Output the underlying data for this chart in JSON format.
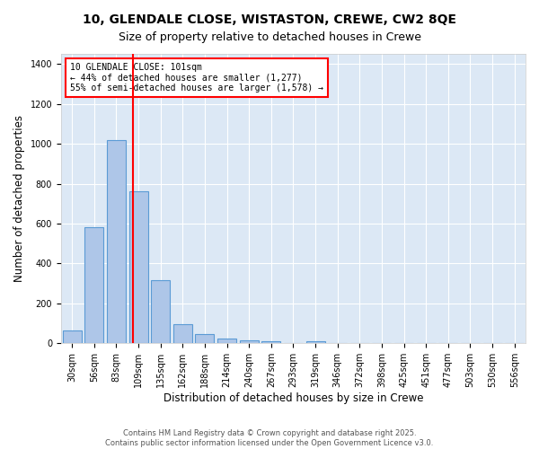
{
  "title_line1": "10, GLENDALE CLOSE, WISTASTON, CREWE, CW2 8QE",
  "title_line2": "Size of property relative to detached houses in Crewe",
  "xlabel": "Distribution of detached houses by size in Crewe",
  "ylabel": "Number of detached properties",
  "categories": [
    "30sqm",
    "56sqm",
    "83sqm",
    "109sqm",
    "135sqm",
    "162sqm",
    "188sqm",
    "214sqm",
    "240sqm",
    "267sqm",
    "293sqm",
    "319sqm",
    "346sqm",
    "372sqm",
    "398sqm",
    "425sqm",
    "451sqm",
    "477sqm",
    "503sqm",
    "530sqm",
    "556sqm"
  ],
  "values": [
    65,
    580,
    1020,
    760,
    315,
    95,
    45,
    22,
    15,
    10,
    0,
    10,
    0,
    0,
    0,
    0,
    0,
    0,
    0,
    0,
    0
  ],
  "bar_color": "#aec6e8",
  "bar_edge_color": "#5b9bd5",
  "vline_x": 2.75,
  "vline_color": "red",
  "annotation_text": "10 GLENDALE CLOSE: 101sqm\n← 44% of detached houses are smaller (1,277)\n55% of semi-detached houses are larger (1,578) →",
  "box_color": "#ffffff",
  "box_edge_color": "red",
  "ylim": [
    0,
    1450
  ],
  "yticks": [
    0,
    200,
    400,
    600,
    800,
    1000,
    1200,
    1400
  ],
  "bg_color": "#dce8f5",
  "grid_color": "#ffffff",
  "fig_bg_color": "#ffffff",
  "footer_text": "Contains HM Land Registry data © Crown copyright and database right 2025.\nContains public sector information licensed under the Open Government Licence v3.0.",
  "title_fontsize": 10,
  "subtitle_fontsize": 9,
  "tick_fontsize": 7,
  "label_fontsize": 8.5,
  "footer_fontsize": 6
}
